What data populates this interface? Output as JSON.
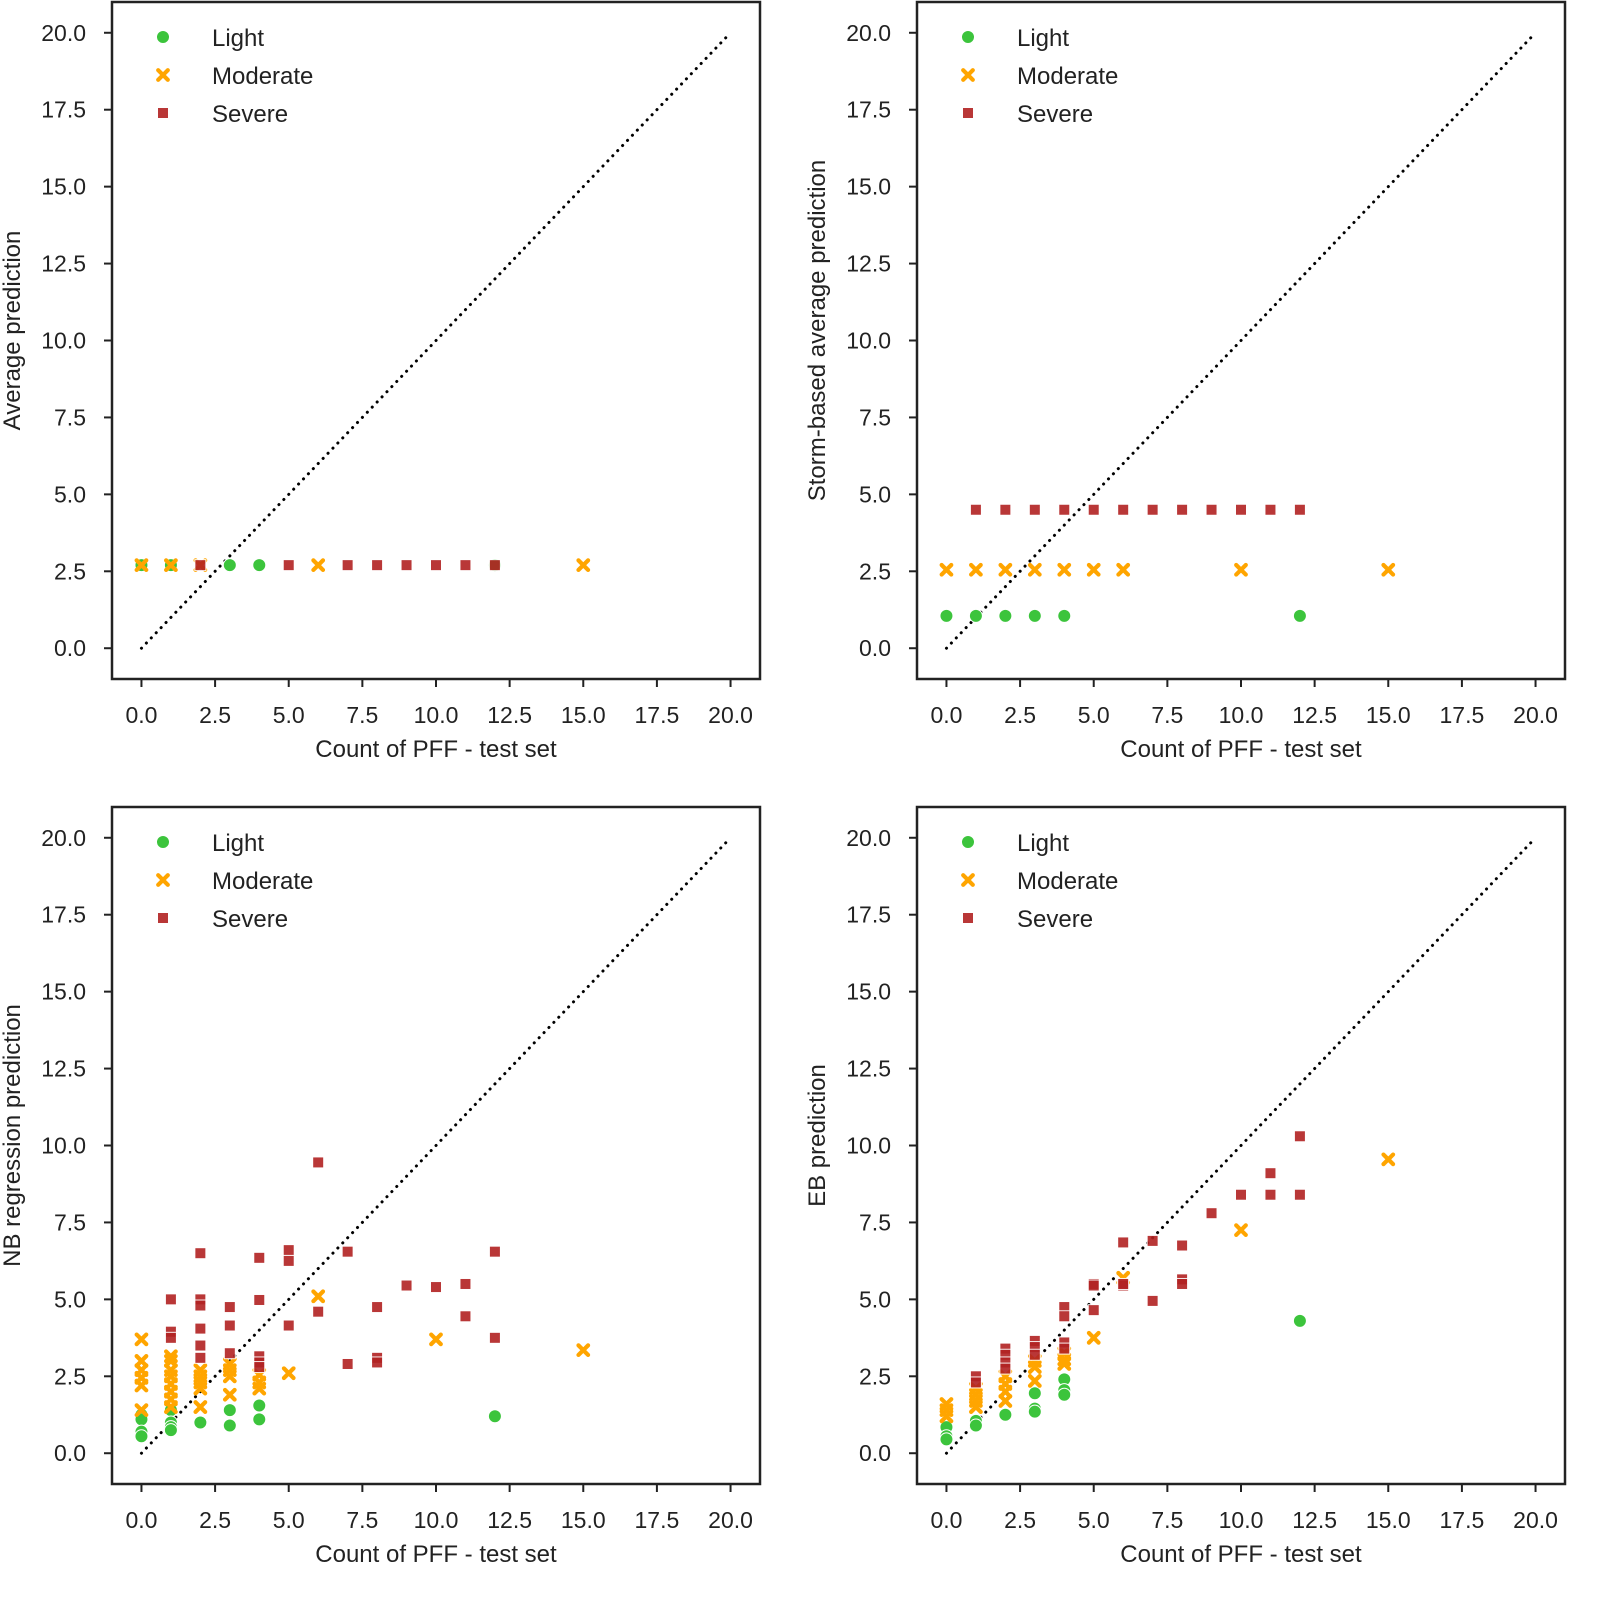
{
  "colors": {
    "Light": "#3cc43c",
    "Moderate": "#ffa500",
    "Severe": "#b22222"
  },
  "chart_data": [
    {
      "type": "scatter",
      "xlabel": "Count of PFF - test set",
      "ylabel": "Average prediction",
      "xlim": [
        -1,
        21
      ],
      "ylim": [
        -1,
        21
      ],
      "ticks": [
        0,
        2.5,
        5,
        7.5,
        10,
        12.5,
        15,
        17.5,
        20
      ],
      "tick_labels": [
        "0.0",
        "2.5",
        "5.0",
        "7.5",
        "10.0",
        "12.5",
        "15.0",
        "17.5",
        "20.0"
      ],
      "legend": [
        "Light",
        "Moderate",
        "Severe"
      ],
      "legend_position": "top-left",
      "reference_line": [
        [
          0,
          0
        ],
        [
          20,
          20
        ]
      ],
      "series": [
        {
          "name": "Light",
          "points": [
            [
              0,
              2.7
            ],
            [
              1,
              2.7
            ],
            [
              3,
              2.7
            ],
            [
              4,
              2.7
            ],
            [
              12,
              2.7
            ]
          ]
        },
        {
          "name": "Moderate",
          "points": [
            [
              0,
              2.7
            ],
            [
              1,
              2.7
            ],
            [
              2,
              2.7
            ],
            [
              6,
              2.7
            ],
            [
              15,
              2.7
            ]
          ]
        },
        {
          "name": "Severe",
          "points": [
            [
              2,
              2.7
            ],
            [
              5,
              2.7
            ],
            [
              7,
              2.7
            ],
            [
              8,
              2.7
            ],
            [
              9,
              2.7
            ],
            [
              10,
              2.7
            ],
            [
              11,
              2.7
            ],
            [
              12,
              2.7
            ]
          ]
        }
      ]
    },
    {
      "type": "scatter",
      "xlabel": "Count of PFF - test set",
      "ylabel": "Storm-based average prediction",
      "xlim": [
        -1,
        21
      ],
      "ylim": [
        -1,
        21
      ],
      "ticks": [
        0,
        2.5,
        5,
        7.5,
        10,
        12.5,
        15,
        17.5,
        20
      ],
      "tick_labels": [
        "0.0",
        "2.5",
        "5.0",
        "7.5",
        "10.0",
        "12.5",
        "15.0",
        "17.5",
        "20.0"
      ],
      "legend": [
        "Light",
        "Moderate",
        "Severe"
      ],
      "legend_position": "top-left",
      "reference_line": [
        [
          0,
          0
        ],
        [
          20,
          20
        ]
      ],
      "series": [
        {
          "name": "Light",
          "points": [
            [
              0,
              1.05
            ],
            [
              1,
              1.05
            ],
            [
              2,
              1.05
            ],
            [
              3,
              1.05
            ],
            [
              4,
              1.05
            ],
            [
              12,
              1.05
            ]
          ]
        },
        {
          "name": "Moderate",
          "points": [
            [
              0,
              2.55
            ],
            [
              1,
              2.55
            ],
            [
              2,
              2.55
            ],
            [
              3,
              2.55
            ],
            [
              4,
              2.55
            ],
            [
              5,
              2.55
            ],
            [
              6,
              2.55
            ],
            [
              10,
              2.55
            ],
            [
              15,
              2.55
            ]
          ]
        },
        {
          "name": "Severe",
          "points": [
            [
              1,
              4.5
            ],
            [
              2,
              4.5
            ],
            [
              3,
              4.5
            ],
            [
              4,
              4.5
            ],
            [
              5,
              4.5
            ],
            [
              6,
              4.5
            ],
            [
              7,
              4.5
            ],
            [
              8,
              4.5
            ],
            [
              9,
              4.5
            ],
            [
              10,
              4.5
            ],
            [
              11,
              4.5
            ],
            [
              12,
              4.5
            ]
          ]
        }
      ]
    },
    {
      "type": "scatter",
      "xlabel": "Count of PFF - test set",
      "ylabel": "NB regression prediction",
      "xlim": [
        -1,
        21
      ],
      "ylim": [
        -1,
        21
      ],
      "ticks": [
        0,
        2.5,
        5,
        7.5,
        10,
        12.5,
        15,
        17.5,
        20
      ],
      "tick_labels": [
        "0.0",
        "2.5",
        "5.0",
        "7.5",
        "10.0",
        "12.5",
        "15.0",
        "17.5",
        "20.0"
      ],
      "legend": [
        "Light",
        "Moderate",
        "Severe"
      ],
      "legend_position": "top-left",
      "reference_line": [
        [
          0,
          0
        ],
        [
          20,
          20
        ]
      ],
      "series": [
        {
          "name": "Light",
          "points": [
            [
              0,
              1.25
            ],
            [
              0,
              1.1
            ],
            [
              0,
              0.7
            ],
            [
              0,
              0.55
            ],
            [
              1,
              1.4
            ],
            [
              1,
              1.0
            ],
            [
              1,
              0.85
            ],
            [
              1,
              0.75
            ],
            [
              2,
              1.0
            ],
            [
              3,
              1.4
            ],
            [
              3,
              0.9
            ],
            [
              4,
              1.55
            ],
            [
              4,
              1.1
            ],
            [
              12,
              1.2
            ]
          ]
        },
        {
          "name": "Moderate",
          "points": [
            [
              0,
              3.7
            ],
            [
              0,
              3.0
            ],
            [
              0,
              2.7
            ],
            [
              0,
              2.45
            ],
            [
              0,
              2.2
            ],
            [
              0,
              1.4
            ],
            [
              1,
              3.15
            ],
            [
              1,
              3.0
            ],
            [
              1,
              2.7
            ],
            [
              1,
              2.5
            ],
            [
              1,
              2.25
            ],
            [
              1,
              2.0
            ],
            [
              1,
              1.75
            ],
            [
              1,
              1.5
            ],
            [
              2,
              2.7
            ],
            [
              2,
              2.5
            ],
            [
              2,
              2.3
            ],
            [
              2,
              2.1
            ],
            [
              2,
              1.5
            ],
            [
              3,
              2.9
            ],
            [
              3,
              2.7
            ],
            [
              3,
              2.5
            ],
            [
              3,
              1.9
            ],
            [
              4,
              2.55
            ],
            [
              4,
              2.3
            ],
            [
              4,
              2.1
            ],
            [
              5,
              2.6
            ],
            [
              6,
              5.1
            ],
            [
              10,
              3.7
            ],
            [
              15,
              3.35
            ]
          ]
        },
        {
          "name": "Severe",
          "points": [
            [
              6,
              9.45
            ],
            [
              2,
              6.5
            ],
            [
              4,
              6.35
            ],
            [
              5,
              6.6
            ],
            [
              5,
              6.25
            ],
            [
              7,
              6.55
            ],
            [
              12,
              6.55
            ],
            [
              1,
              5.0
            ],
            [
              2,
              5.0
            ],
            [
              2,
              4.8
            ],
            [
              3,
              4.75
            ],
            [
              4,
              4.98
            ],
            [
              6,
              4.6
            ],
            [
              8,
              4.75
            ],
            [
              9,
              5.45
            ],
            [
              10,
              5.4
            ],
            [
              11,
              5.5
            ],
            [
              11,
              4.45
            ],
            [
              1,
              3.95
            ],
            [
              1,
              3.75
            ],
            [
              2,
              4.05
            ],
            [
              2,
              3.5
            ],
            [
              2,
              3.1
            ],
            [
              3,
              4.15
            ],
            [
              3,
              3.25
            ],
            [
              4,
              3.15
            ],
            [
              4,
              2.95
            ],
            [
              4,
              2.8
            ],
            [
              5,
              4.15
            ],
            [
              7,
              2.9
            ],
            [
              8,
              3.1
            ],
            [
              8,
              2.95
            ],
            [
              12,
              3.75
            ]
          ]
        }
      ]
    },
    {
      "type": "scatter",
      "xlabel": "Count of PFF - test set",
      "ylabel": "EB prediction",
      "xlim": [
        -1,
        21
      ],
      "ylim": [
        -1,
        21
      ],
      "ticks": [
        0,
        2.5,
        5,
        7.5,
        10,
        12.5,
        15,
        17.5,
        20
      ],
      "tick_labels": [
        "0.0",
        "2.5",
        "5.0",
        "7.5",
        "10.0",
        "12.5",
        "15.0",
        "17.5",
        "20.0"
      ],
      "legend": [
        "Light",
        "Moderate",
        "Severe"
      ],
      "legend_position": "top-left",
      "reference_line": [
        [
          0,
          0
        ],
        [
          20,
          20
        ]
      ],
      "series": [
        {
          "name": "Light",
          "points": [
            [
              12,
              4.3
            ],
            [
              4,
              2.4
            ],
            [
              4,
              2.05
            ],
            [
              4,
              1.9
            ],
            [
              3,
              1.95
            ],
            [
              3,
              1.45
            ],
            [
              3,
              1.35
            ],
            [
              2,
              1.25
            ],
            [
              1,
              1.05
            ],
            [
              1,
              0.9
            ],
            [
              0,
              0.85
            ],
            [
              0,
              0.55
            ],
            [
              0,
              0.45
            ]
          ]
        },
        {
          "name": "Moderate",
          "points": [
            [
              15,
              9.55
            ],
            [
              10,
              7.25
            ],
            [
              6,
              5.7
            ],
            [
              5,
              3.75
            ],
            [
              4,
              3.25
            ],
            [
              4,
              3.05
            ],
            [
              4,
              2.9
            ],
            [
              3,
              3.0
            ],
            [
              3,
              2.8
            ],
            [
              3,
              2.35
            ],
            [
              2,
              2.5
            ],
            [
              2,
              2.25
            ],
            [
              2,
              2.0
            ],
            [
              2,
              1.7
            ],
            [
              1,
              2.1
            ],
            [
              1,
              1.9
            ],
            [
              1,
              1.7
            ],
            [
              1,
              1.5
            ],
            [
              0,
              1.6
            ],
            [
              0,
              1.4
            ],
            [
              0,
              1.2
            ]
          ]
        },
        {
          "name": "Severe",
          "points": [
            [
              12,
              10.3
            ],
            [
              11,
              9.1
            ],
            [
              10,
              8.4
            ],
            [
              11,
              8.4
            ],
            [
              12,
              8.4
            ],
            [
              9,
              7.8
            ],
            [
              6,
              6.85
            ],
            [
              7,
              6.9
            ],
            [
              8,
              6.75
            ],
            [
              5,
              5.5
            ],
            [
              5,
              5.45
            ],
            [
              6,
              5.45
            ],
            [
              8,
              5.65
            ],
            [
              8,
              5.5
            ],
            [
              7,
              4.95
            ],
            [
              5,
              4.65
            ],
            [
              4,
              4.75
            ],
            [
              4,
              4.45
            ],
            [
              4,
              3.6
            ],
            [
              4,
              3.4
            ],
            [
              3,
              3.65
            ],
            [
              3,
              3.45
            ],
            [
              3,
              3.2
            ],
            [
              2,
              3.4
            ],
            [
              2,
              3.2
            ],
            [
              2,
              2.95
            ],
            [
              2,
              2.75
            ],
            [
              1,
              2.5
            ],
            [
              1,
              2.3
            ],
            [
              6,
              5.5
            ]
          ]
        }
      ]
    }
  ]
}
